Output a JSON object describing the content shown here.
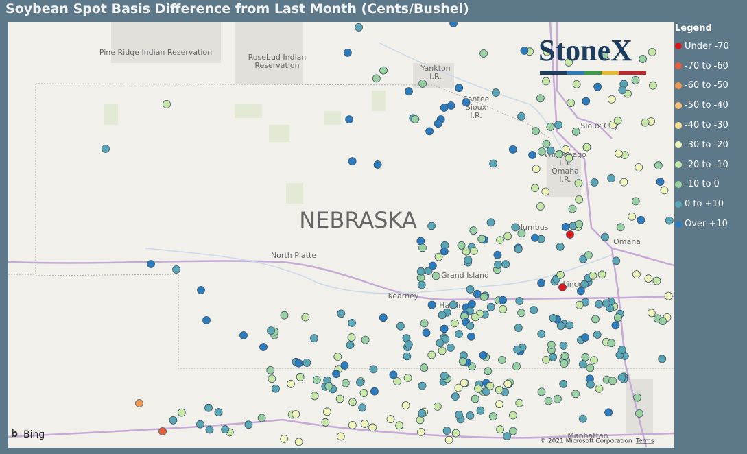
{
  "title": "Soybean Spot Basis Difference from Last Month (Cents/Bushel)",
  "legend": {
    "title": "Legend",
    "items": [
      {
        "label": "Under -70",
        "color": "#d7191c"
      },
      {
        "label": "-70 to -60",
        "color": "#e5603a"
      },
      {
        "label": "-60 to -50",
        "color": "#f29a52"
      },
      {
        "label": "-50 to -40",
        "color": "#f6c17c"
      },
      {
        "label": "-40 to -30",
        "color": "#f8e29a"
      },
      {
        "label": "-30 to -20",
        "color": "#f2f5bb"
      },
      {
        "label": "-20 to -10",
        "color": "#c8e6a6"
      },
      {
        "label": "-10 to 0",
        "color": "#9bd1a2"
      },
      {
        "label": "0 to +10",
        "color": "#5aa6b5"
      },
      {
        "label": "Over +10",
        "color": "#2c7bbd"
      }
    ]
  },
  "map": {
    "region": "NEBRASKA",
    "labels": [
      "Pine Ridge Indian Reservation",
      "Rosebud Indian",
      "Reservation",
      "Yankton",
      "I.R.",
      "Santee",
      "Sioux",
      "I.R.",
      "Sioux City",
      "Winnebago",
      "I.R.",
      "Omaha",
      "I.R.",
      "Columbus",
      "Omaha",
      "North Platte",
      "Grand Island",
      "Kearney",
      "Hastings",
      "Lincoln",
      "Manhattan"
    ],
    "logo": "StoneX",
    "provider": "Bing",
    "copyright": "© 2021 Microsoft Corporation",
    "terms": "Terms"
  }
}
